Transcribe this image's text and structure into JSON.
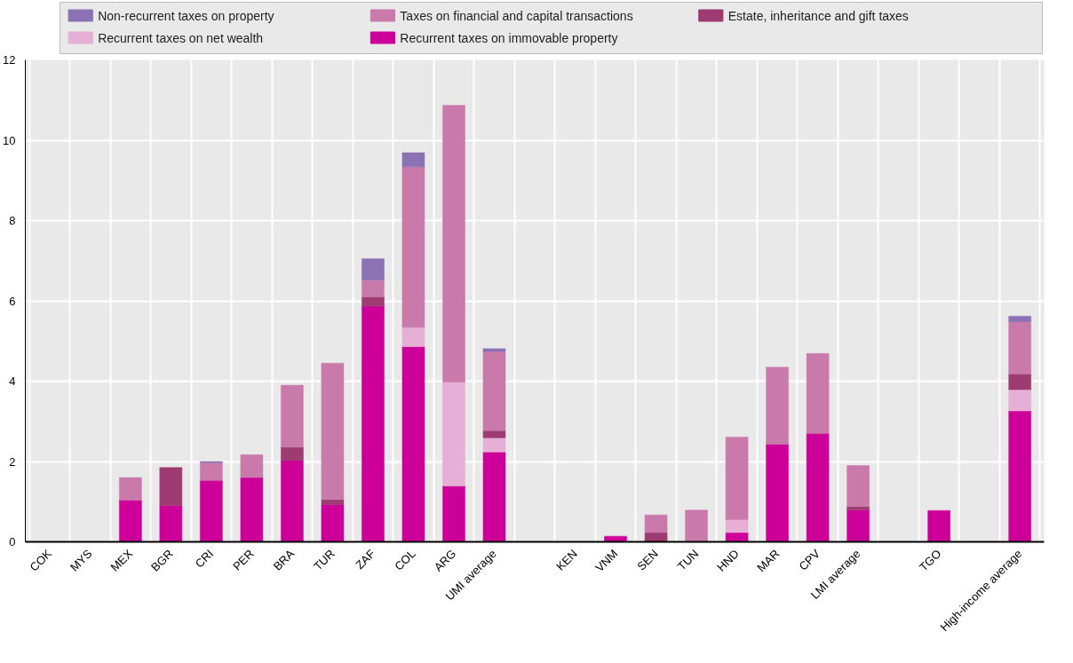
{
  "chart_data": {
    "type": "bar",
    "stacked": true,
    "categories": [
      "COK",
      "MYS",
      "MEX",
      "BGR",
      "CRI",
      "PER",
      "BRA",
      "TUR",
      "ZAF",
      "COL",
      "ARG",
      "UMI average",
      null,
      "KEN",
      "VNM",
      "SEN",
      "TUN",
      "HND",
      "MAR",
      "CPV",
      "LMI average",
      null,
      "TGO",
      null,
      "High-income average"
    ],
    "series": [
      {
        "name": "Recurrent taxes on immovable property",
        "color": "#cc0099",
        "values": [
          null,
          null,
          1.04,
          0.9,
          1.53,
          1.6,
          2.03,
          0.93,
          5.87,
          4.86,
          1.39,
          2.24,
          null,
          null,
          0.14,
          null,
          null,
          0.23,
          2.43,
          2.7,
          0.79,
          null,
          0.78,
          null,
          3.26
        ]
      },
      {
        "name": "Recurrent taxes on net wealth",
        "color": "#e6b0d6",
        "values": [
          null,
          null,
          null,
          null,
          null,
          null,
          null,
          null,
          null,
          0.48,
          2.59,
          0.35,
          null,
          null,
          null,
          null,
          null,
          0.32,
          null,
          null,
          null,
          null,
          null,
          null,
          0.53
        ]
      },
      {
        "name": "Estate, inheritance and gift taxes",
        "color": "#9e3b70",
        "values": [
          null,
          null,
          null,
          0.95,
          null,
          null,
          0.33,
          0.12,
          0.23,
          null,
          null,
          0.18,
          null,
          null,
          null,
          0.23,
          null,
          null,
          null,
          null,
          0.09,
          null,
          null,
          null,
          0.39
        ]
      },
      {
        "name": "Taxes on financial and capital transactions",
        "color": "#c97aaa",
        "values": [
          null,
          null,
          0.56,
          null,
          0.44,
          0.57,
          1.54,
          3.4,
          0.42,
          4.0,
          6.89,
          1.97,
          null,
          null,
          null,
          0.44,
          0.79,
          2.06,
          1.92,
          1.99,
          1.02,
          null,
          null,
          null,
          1.3
        ]
      },
      {
        "name": "Non-recurrent taxes on property",
        "color": "#8b72b5",
        "values": [
          null,
          null,
          null,
          null,
          0.03,
          null,
          null,
          null,
          0.53,
          0.35,
          null,
          0.07,
          null,
          null,
          null,
          null,
          null,
          null,
          null,
          null,
          null,
          null,
          null,
          null,
          0.14
        ]
      }
    ],
    "ylim": [
      0,
      12
    ],
    "yticks": [
      0,
      2,
      4,
      6,
      8,
      10,
      12
    ],
    "grid": true,
    "legend": "top"
  }
}
